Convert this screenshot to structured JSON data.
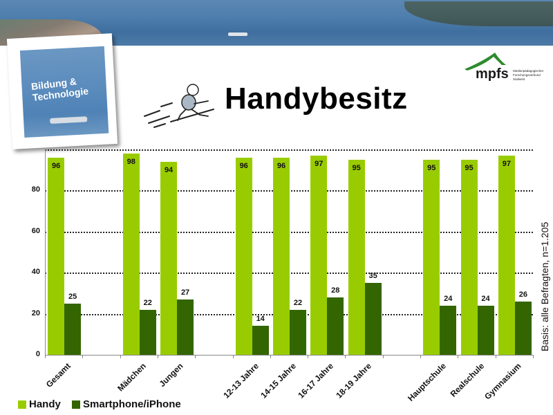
{
  "header": {
    "title": "Handybesitz",
    "photo_caption_line1": "Bildung &",
    "photo_caption_line2": "Technologie",
    "logo_word": "mpfs",
    "logo_subtext": "Medienpädagogischer Forschungsverbund Südwest"
  },
  "footnote": "Basis: alle Befragten, n=1.205",
  "colors": {
    "handy": "#99cc00",
    "smartphone": "#336600"
  },
  "chart_data": {
    "type": "bar",
    "title": "Handybesitz",
    "xlabel": "",
    "ylabel": "",
    "ylim": [
      0,
      100
    ],
    "yticks": [
      0,
      20,
      40,
      60,
      80
    ],
    "grid": true,
    "legend_position": "bottom-left",
    "categories": [
      "Gesamt",
      "Mädchen",
      "Jungen",
      "12-13 Jahre",
      "14-15 Jahre",
      "16-17 Jahre",
      "18-19 Jahre",
      "Hauptschule",
      "Realschule",
      "Gymnasium"
    ],
    "category_slots": [
      0,
      2,
      3,
      5,
      6,
      7,
      8,
      10,
      11,
      12
    ],
    "series": [
      {
        "name": "Handy",
        "color": "#99cc00",
        "values": [
          96,
          98,
          94,
          96,
          96,
          97,
          95,
          95,
          95,
          97
        ]
      },
      {
        "name": "Smartphone/iPhone",
        "color": "#336600",
        "values": [
          25,
          22,
          27,
          14,
          22,
          28,
          35,
          24,
          24,
          26
        ]
      }
    ],
    "annotations": [
      "Basis: alle Befragten, n=1.205"
    ]
  }
}
